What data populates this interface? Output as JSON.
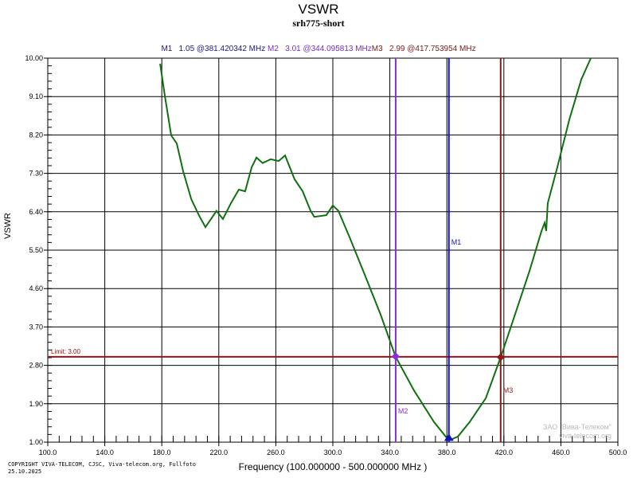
{
  "chart_data": {
    "type": "line",
    "title": "VSWR",
    "subtitle": "srh775-short",
    "xlabel": "Frequency (100.000000 - 500.000000 MHz )",
    "ylabel": "VSWR",
    "xlim": [
      100,
      500
    ],
    "ylim": [
      1,
      10
    ],
    "grid": true,
    "x_ticks": [
      "100.0",
      "140.0",
      "180.0",
      "220.0",
      "260.0",
      "300.0",
      "340.0",
      "380.0",
      "420.0",
      "460.0",
      "500.0"
    ],
    "y_ticks": [
      "1.00",
      "1.90",
      "2.80",
      "3.70",
      "4.60",
      "5.50",
      "6.40",
      "7.30",
      "8.20",
      "9.10",
      "10.00"
    ],
    "series": [
      {
        "color": "#107010",
        "x": [
          178.8,
          182.1,
          186.6,
          190.5,
          195,
          200.6,
          206,
          210.6,
          214.5,
          218.4,
          222.9,
          228.5,
          234,
          238.5,
          243,
          246.4,
          250.8,
          256.4,
          262,
          266.5,
          273.2,
          278.8,
          284.4,
          287,
          295.5,
          300,
          303.9,
          312.3,
          323.5,
          333.5,
          344.1,
          357,
          371,
          381.4,
          387.7,
          396,
          407.3,
          417.9,
          426.8,
          438,
          446.4,
          448.6,
          449.7,
          450.8,
          457.5,
          465.9,
          474.3,
          481
        ],
        "y": [
          9.87,
          9.12,
          8.19,
          8.0,
          7.35,
          6.7,
          6.32,
          6.04,
          6.23,
          6.42,
          6.23,
          6.6,
          6.92,
          6.88,
          7.44,
          7.67,
          7.54,
          7.63,
          7.59,
          7.72,
          7.16,
          6.88,
          6.42,
          6.28,
          6.32,
          6.55,
          6.42,
          5.76,
          4.83,
          3.99,
          3.0,
          2.21,
          1.47,
          1.04,
          1.13,
          1.47,
          2.03,
          3.0,
          3.89,
          5.01,
          5.95,
          6.14,
          5.95,
          6.6,
          7.44,
          8.56,
          9.5,
          10.0
        ]
      }
    ],
    "limit": {
      "label": "Limit: 3.00",
      "value": 3.0,
      "color": "#a01010"
    },
    "markers": [
      {
        "name": "M1",
        "value": 1.05,
        "freq": 381.420342,
        "readout": "M1   1.05 @381.420342 MHz",
        "color": "#1010c0",
        "shape": "triangle"
      },
      {
        "name": "M2",
        "value": 3.01,
        "freq": 344.095813,
        "readout": "M2   3.01 @344.095813 MHz",
        "color": "#8a2be2",
        "shape": "diamond"
      },
      {
        "name": "M3",
        "value": 2.99,
        "freq": 417.753954,
        "readout": "M3   2.99 @417.753954 MHz",
        "color": "#8b1a1a",
        "shape": "diamond"
      }
    ]
  },
  "footer": {
    "copyright": "COPYRIGHT VIVA-TELECOM, CJSC, Viva-telecom.org, Fullfoto",
    "date": "25.10.2025",
    "watermark_line1": "ЗАО \"Вива-Телеком\"",
    "watermark_line2": "viva-telecom.org"
  }
}
